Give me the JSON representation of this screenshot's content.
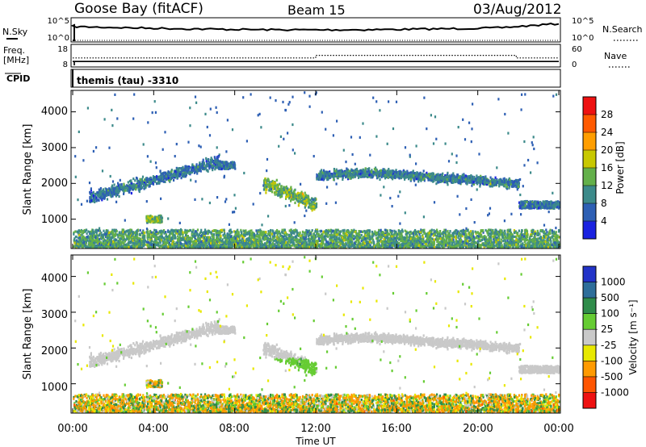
{
  "header": {
    "site": "Goose Bay (fitACF)",
    "beam": "Beam 15",
    "date": "03/Aug/2012"
  },
  "strip_labels": {
    "nsky": "N.Sky",
    "nsearch": "N.Search",
    "freq_line1": "Freq.",
    "freq_line2": "[MHz]",
    "nave": "Nave",
    "cpid": "CPID",
    "cpid_value": "themis (tau) -3310",
    "noise_left_ticks": [
      "10^5",
      "10^0"
    ],
    "noise_right_ticks": [
      "10^5",
      "10^0"
    ],
    "freq_ticks": [
      "18",
      "8"
    ],
    "nave_ticks": [
      "60",
      "0"
    ]
  },
  "axes": {
    "x_ticks": [
      "00:00",
      "04:00",
      "08:00",
      "12:00",
      "16:00",
      "20:00",
      "00:00"
    ],
    "xlabel": "Time UT",
    "ylabel": "Slant Range [km]",
    "y_ticks": [
      "1000",
      "2000",
      "3000",
      "4000"
    ]
  },
  "power_bar": {
    "label": "Power [dB]",
    "ticks": [
      "4",
      "8",
      "12",
      "16",
      "20",
      "24",
      "28"
    ],
    "colors": [
      "#1a22e0",
      "#2d5fb4",
      "#3c8a8a",
      "#63b04a",
      "#c8c800",
      "#ff9e00",
      "#ff5a00",
      "#ee1111"
    ]
  },
  "velocity_bar": {
    "label": "Velocity [m s⁻¹]",
    "ticks": [
      "1000",
      "500",
      "100",
      "25",
      "-25",
      "-100",
      "-500",
      "-1000"
    ],
    "colors": [
      "#2233c8",
      "#2e6e9a",
      "#2f8c4a",
      "#66cc33",
      "#c9c9c9",
      "#e8e800",
      "#ff9a00",
      "#ff5500",
      "#ee1111"
    ]
  },
  "chart_data": {
    "type": "heatmap",
    "x_range_hours": [
      0,
      24
    ],
    "y_range_km": [
      180,
      4600
    ],
    "power_range_db": [
      0,
      32
    ],
    "velocity_range_ms": [
      -1250,
      1250
    ],
    "backscatter_regions": [
      {
        "t_start": 0.8,
        "t_end": 7.2,
        "range_start_km": 1500,
        "range_end_km": 2700,
        "trend": "rising to 2700 km",
        "power_db": 8,
        "velocity_ms": 0
      },
      {
        "t_start": 7.0,
        "t_end": 8.0,
        "range_start_km": 2400,
        "range_end_km": 2600,
        "power_db": 8,
        "velocity_ms": 0
      },
      {
        "t_start": 9.4,
        "t_end": 12.0,
        "range_start_km": 1300,
        "range_end_km": 2200,
        "trend": "descending to 1400 km",
        "power_db": 14,
        "velocity_ms": 0
      },
      {
        "t_start": 12.0,
        "t_end": 22.0,
        "range_start_km": 1900,
        "range_end_km": 2600,
        "power_db": 9,
        "velocity_ms": 0
      },
      {
        "t_start": 22.0,
        "t_end": 24.0,
        "range_start_km": 1300,
        "range_end_km": 1500,
        "power_db": 8,
        "velocity_ms": 0
      },
      {
        "t_start": 3.6,
        "t_end": 4.4,
        "range_start_km": 900,
        "range_end_km": 1100,
        "power_db": 14,
        "velocity_ms": -100
      },
      {
        "t_start": 0.0,
        "t_end": 24.0,
        "range_start_km": 180,
        "range_end_km": 700,
        "power_db": 12,
        "velocity_ms": -50
      }
    ],
    "frequency_mhz": [
      {
        "t_start": 0,
        "t_end": 24,
        "value": 10
      }
    ],
    "nave": [
      {
        "t_start": 0,
        "t_end": 12,
        "value": 23
      },
      {
        "t_start": 12,
        "t_end": 21.9,
        "value": 31
      },
      {
        "t_start": 21.9,
        "t_end": 24,
        "value": 23
      }
    ]
  }
}
